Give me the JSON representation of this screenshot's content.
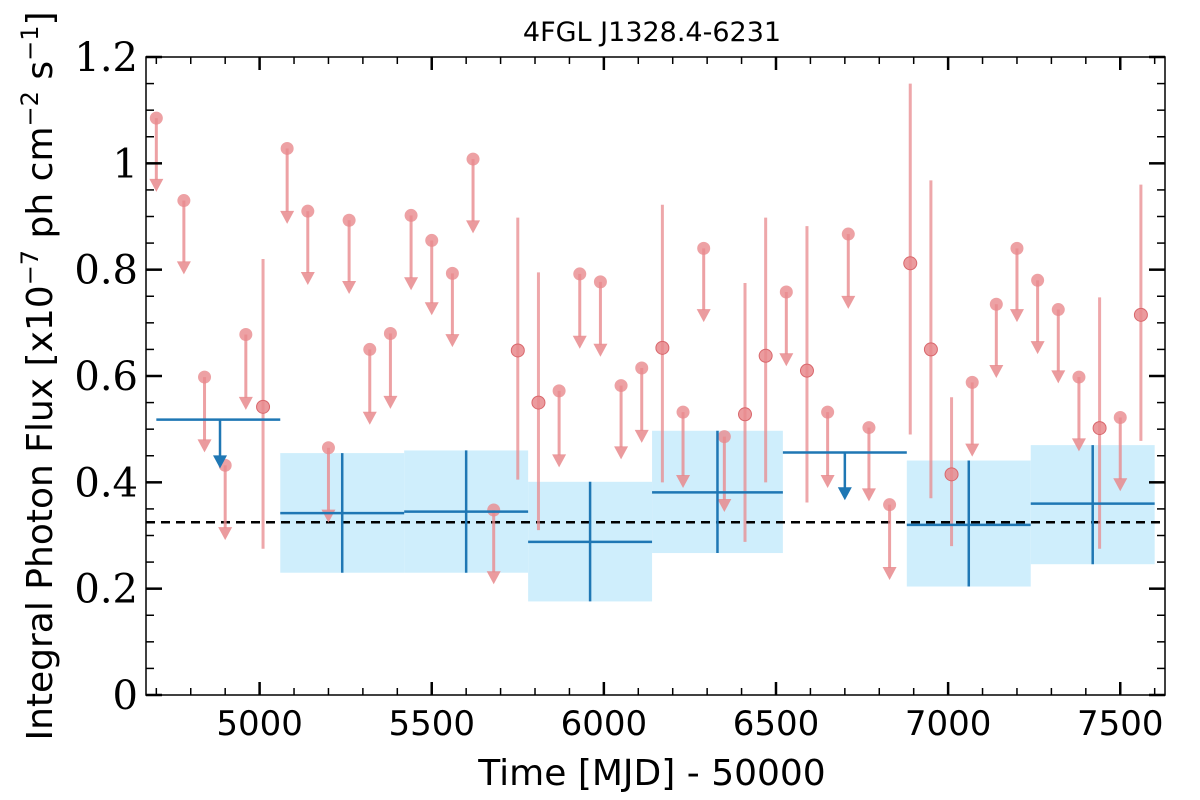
{
  "chart_data": {
    "type": "scatter",
    "title": "4FGL J1328.4-6231",
    "xlabel": "Time [MJD] - 50000",
    "ylabel": "Integral Photon Flux [x10",
    "ylabel_exp1": "−7",
    "ylabel_mid": " ph cm",
    "ylabel_exp2": "−2",
    "ylabel_mid2": " s",
    "ylabel_exp3": "−1",
    "ylabel_end": "]",
    "xlim": [
      4670,
      7630
    ],
    "ylim": [
      0,
      1.2
    ],
    "xticks": [
      5000,
      5500,
      6000,
      6500,
      7000,
      7500
    ],
    "xtick_labels": [
      "5000",
      "5500",
      "6000",
      "6500",
      "7000",
      "7500"
    ],
    "yticks": [
      0,
      0.2,
      0.4,
      0.6,
      0.8,
      1.0,
      1.2
    ],
    "ytick_labels": [
      "0",
      "0.2",
      "0.4",
      "0.6",
      "0.8",
      "1",
      "1.2"
    ],
    "reference_level": 0.325,
    "colors": {
      "fine": "#e8898d",
      "coarse": "#1f77b4",
      "band": "#cfeefc",
      "reference": "#000000"
    },
    "fine_upper_limits": [
      {
        "x": 4700,
        "y": 1.085,
        "lo": 0.95
      },
      {
        "x": 4780,
        "y": 0.93,
        "lo": 0.795
      },
      {
        "x": 4840,
        "y": 0.598,
        "lo": 0.46
      },
      {
        "x": 4900,
        "y": 0.432,
        "lo": 0.295
      },
      {
        "x": 4960,
        "y": 0.678,
        "lo": 0.54
      },
      {
        "x": 5080,
        "y": 1.028,
        "lo": 0.89
      },
      {
        "x": 5140,
        "y": 0.91,
        "lo": 0.775
      },
      {
        "x": 5200,
        "y": 0.465,
        "lo": 0.328
      },
      {
        "x": 5260,
        "y": 0.893,
        "lo": 0.758
      },
      {
        "x": 5320,
        "y": 0.65,
        "lo": 0.512
      },
      {
        "x": 5380,
        "y": 0.68,
        "lo": 0.542
      },
      {
        "x": 5440,
        "y": 0.902,
        "lo": 0.765
      },
      {
        "x": 5500,
        "y": 0.855,
        "lo": 0.718
      },
      {
        "x": 5560,
        "y": 0.793,
        "lo": 0.658
      },
      {
        "x": 5620,
        "y": 1.008,
        "lo": 0.872
      },
      {
        "x": 5680,
        "y": 0.348,
        "lo": 0.212
      },
      {
        "x": 5870,
        "y": 0.572,
        "lo": 0.432
      },
      {
        "x": 5930,
        "y": 0.792,
        "lo": 0.655
      },
      {
        "x": 5990,
        "y": 0.777,
        "lo": 0.64
      },
      {
        "x": 6050,
        "y": 0.582,
        "lo": 0.447
      },
      {
        "x": 6110,
        "y": 0.615,
        "lo": 0.478
      },
      {
        "x": 6230,
        "y": 0.532,
        "lo": 0.393
      },
      {
        "x": 6290,
        "y": 0.84,
        "lo": 0.705
      },
      {
        "x": 6350,
        "y": 0.486,
        "lo": 0.348
      },
      {
        "x": 6530,
        "y": 0.758,
        "lo": 0.622
      },
      {
        "x": 6650,
        "y": 0.532,
        "lo": 0.393
      },
      {
        "x": 6710,
        "y": 0.867,
        "lo": 0.73
      },
      {
        "x": 6770,
        "y": 0.503,
        "lo": 0.368
      },
      {
        "x": 6830,
        "y": 0.358,
        "lo": 0.22
      },
      {
        "x": 7070,
        "y": 0.588,
        "lo": 0.452
      },
      {
        "x": 7140,
        "y": 0.735,
        "lo": 0.6
      },
      {
        "x": 7200,
        "y": 0.84,
        "lo": 0.705
      },
      {
        "x": 7260,
        "y": 0.78,
        "lo": 0.645
      },
      {
        "x": 7320,
        "y": 0.725,
        "lo": 0.59
      },
      {
        "x": 7380,
        "y": 0.598,
        "lo": 0.462
      },
      {
        "x": 7500,
        "y": 0.522,
        "lo": 0.387
      }
    ],
    "fine_detections": [
      {
        "x": 5010,
        "y": 0.542,
        "lo": 0.275,
        "hi": 0.82
      },
      {
        "x": 5750,
        "y": 0.648,
        "lo": 0.405,
        "hi": 0.898
      },
      {
        "x": 5810,
        "y": 0.55,
        "lo": 0.31,
        "hi": 0.795
      },
      {
        "x": 6170,
        "y": 0.653,
        "lo": 0.4,
        "hi": 0.922
      },
      {
        "x": 6410,
        "y": 0.528,
        "lo": 0.288,
        "hi": 0.775
      },
      {
        "x": 6470,
        "y": 0.638,
        "lo": 0.4,
        "hi": 0.898
      },
      {
        "x": 6590,
        "y": 0.61,
        "lo": 0.362,
        "hi": 0.882
      },
      {
        "x": 6890,
        "y": 0.812,
        "lo": 0.49,
        "hi": 1.15
      },
      {
        "x": 6950,
        "y": 0.65,
        "lo": 0.37,
        "hi": 0.968
      },
      {
        "x": 7010,
        "y": 0.415,
        "lo": 0.28,
        "hi": 0.56
      },
      {
        "x": 7440,
        "y": 0.502,
        "lo": 0.275,
        "hi": 0.748
      },
      {
        "x": 7560,
        "y": 0.715,
        "lo": 0.478,
        "hi": 0.96
      }
    ],
    "coarse_upper_limits": [
      {
        "x0": 4700,
        "x1": 5060,
        "xm": 4885,
        "y": 0.518,
        "lo": 0.43
      },
      {
        "x0": 6520,
        "x1": 6880,
        "xm": 6700,
        "y": 0.456,
        "lo": 0.37
      }
    ],
    "coarse_detections": [
      {
        "x0": 5060,
        "x1": 5420,
        "xm": 5240,
        "y": 0.342,
        "lo": 0.23,
        "hi": 0.455
      },
      {
        "x0": 5420,
        "x1": 5780,
        "xm": 5600,
        "y": 0.345,
        "lo": 0.23,
        "hi": 0.46
      },
      {
        "x0": 5780,
        "x1": 6140,
        "xm": 5960,
        "y": 0.288,
        "lo": 0.176,
        "hi": 0.401
      },
      {
        "x0": 6140,
        "x1": 6520,
        "xm": 6330,
        "y": 0.381,
        "lo": 0.267,
        "hi": 0.497
      },
      {
        "x0": 6880,
        "x1": 7240,
        "xm": 7060,
        "y": 0.32,
        "lo": 0.204,
        "hi": 0.441
      },
      {
        "x0": 7240,
        "x1": 7600,
        "xm": 7420,
        "y": 0.36,
        "lo": 0.246,
        "hi": 0.47
      }
    ]
  }
}
